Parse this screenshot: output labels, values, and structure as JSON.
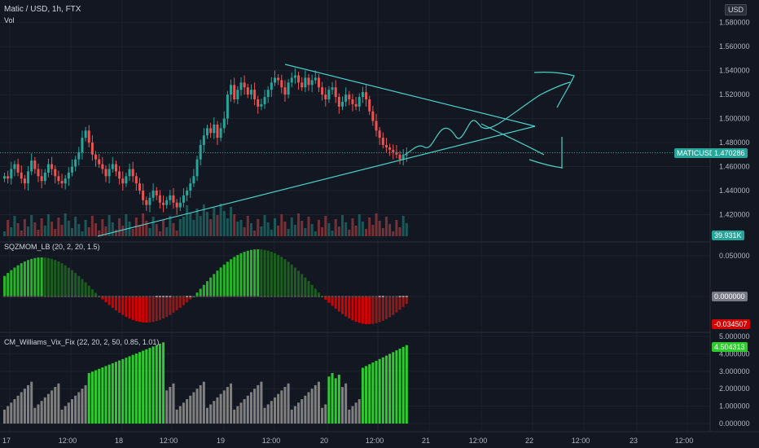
{
  "header": {
    "symbol_title": "Matic / USD, 1h, FTX",
    "volume_label": "Vol",
    "currency_badge": "USD"
  },
  "panes": {
    "main": {
      "price_ticks": [
        "1.580000",
        "1.560000",
        "1.540000",
        "1.520000",
        "1.500000",
        "1.480000",
        "1.460000",
        "1.440000",
        "1.420000"
      ],
      "price_range": [
        1.402,
        1.592
      ],
      "last_price": "1.470286",
      "last_price_label": "MATICUSD",
      "last_volume": "39.931K"
    },
    "sqzmom": {
      "title": "SQZMOM_LB (20, 2, 20, 1.5)",
      "ticks": [
        "0.050000",
        "0.000000"
      ],
      "current_value": "0.000000",
      "low_value": "-0.034507"
    },
    "wvf": {
      "title": "CM_Williams_Vix_Fix (22, 20, 2, 50, 0.85, 1.01)",
      "ticks": [
        "5.000000",
        "4.000000",
        "3.000000",
        "2.000000",
        "1.000000",
        "0.000000"
      ],
      "current_value": "4.504313"
    }
  },
  "time_axis": {
    "labels": [
      "17",
      "12:00",
      "18",
      "12:00",
      "19",
      "12:00",
      "20",
      "12:00",
      "21",
      "12:00",
      "22",
      "12:00",
      "23",
      "12:00"
    ]
  },
  "colors": {
    "background": "#131722",
    "up_candle": "#26a69a",
    "down_candle": "#ef5350",
    "drawing": "#4dd0c8",
    "squeeze_green_bright": "#26b526",
    "squeeze_green_dark": "#1b5e20",
    "squeeze_red_bright": "#d50000",
    "squeeze_red_dark": "#8b1a1a",
    "wvf_green": "#2dcc2d",
    "wvf_gray": "#808080"
  }
}
